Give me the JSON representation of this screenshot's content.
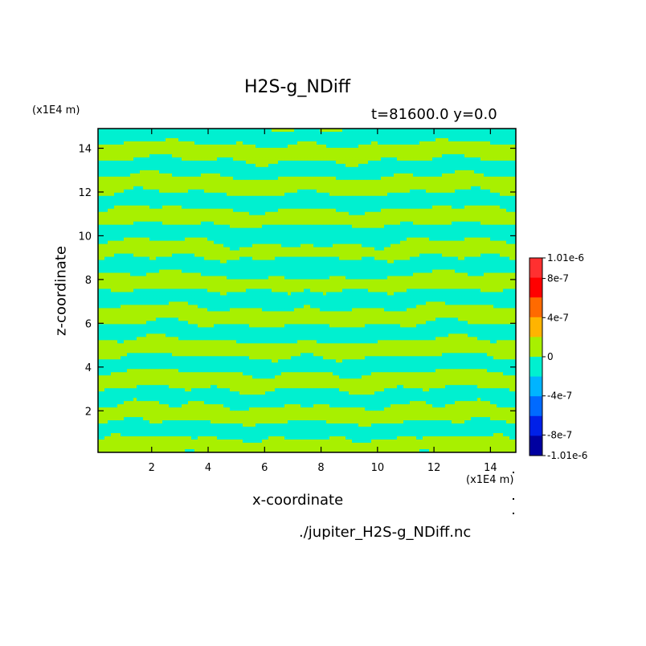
{
  "chart_data": {
    "type": "heatmap",
    "title": "H2S-g_NDiff",
    "subtitle": "t=81600.0 y=0.0",
    "xlabel": "x-coordinate",
    "ylabel": "z-coordinate",
    "x_unit": "(x1E4 m)",
    "y_unit": "(x1E4 m)",
    "xlim": [
      0.1,
      14.9
    ],
    "ylim": [
      0.1,
      14.9
    ],
    "x_ticks": [
      2,
      4,
      6,
      8,
      10,
      12,
      14
    ],
    "y_ticks": [
      2,
      4,
      6,
      8,
      10,
      12,
      14
    ],
    "grid": false,
    "pattern": "banded field alternating between the levels just below and just above 0, mirror-symmetric about x = 7.5",
    "dominant_levels": [
      "-2e-7..0",
      "0..2e-7"
    ],
    "colorbar": {
      "min": -1.01e-06,
      "max": 1.01e-06,
      "tick_labels": [
        "1.01e-6",
        "8e-7",
        "4e-7",
        "0",
        "-4e-7",
        "-8e-7",
        "-1.01e-6"
      ],
      "tick_values": [
        1.01e-06,
        8e-07,
        4e-07,
        0,
        -4e-07,
        -8e-07,
        -1.01e-06
      ],
      "colors_top_to_bottom": [
        "#ff3030",
        "#ff0000",
        "#ff6a00",
        "#ffb400",
        "#a8f000",
        "#00f0d0",
        "#00b4ff",
        "#006aff",
        "#0020e8",
        "#0000a0"
      ]
    },
    "field_colors": {
      "below_zero": "#00f0d0",
      "above_zero": "#a8f000"
    }
  },
  "footer": {
    "filename": "./jupiter_H2S-g_NDiff.nc"
  }
}
